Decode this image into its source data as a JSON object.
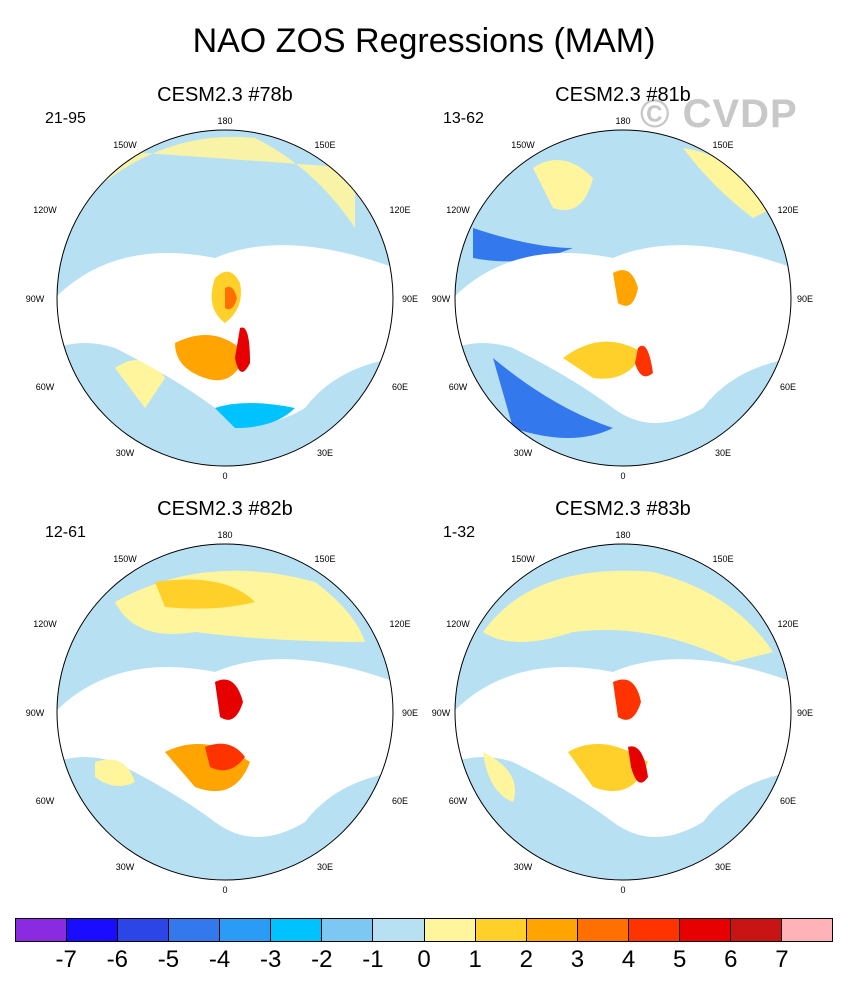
{
  "title": "NAO ZOS Regressions (MAM)",
  "watermark": "© CVDP",
  "panels": [
    {
      "name": "CESM2.3 #78b",
      "years": "21-95"
    },
    {
      "name": "CESM2.3 #81b",
      "years": "13-62"
    },
    {
      "name": "CESM2.3 #82b",
      "years": "12-61"
    },
    {
      "name": "CESM2.3 #83b",
      "years": "1-32"
    }
  ],
  "lon_labels": {
    "top": "180",
    "bottom": "0",
    "left_upper": "150W",
    "left_mid_upper": "120W",
    "left_mid": "90W",
    "left_mid_lower": "60W",
    "left_lower": "30W",
    "right_upper": "150E",
    "right_mid_upper": "120E",
    "right_mid": "90E",
    "right_mid_lower": "60E",
    "right_lower": "30E"
  },
  "colorbar": {
    "colors": [
      "#8a2be2",
      "#1a0dff",
      "#2b45e6",
      "#3478ee",
      "#2b9cf5",
      "#00c2ff",
      "#7dc8f2",
      "#b7e1f3",
      "#fff59d",
      "#ffd02a",
      "#ffa400",
      "#ff7000",
      "#ff3300",
      "#e60000",
      "#c81414",
      "#ffb3b8"
    ],
    "labels": [
      "-7",
      "-6",
      "-5",
      "-4",
      "-3",
      "-2",
      "-1",
      "0",
      "1",
      "2",
      "3",
      "4",
      "5",
      "6",
      "7"
    ]
  }
}
